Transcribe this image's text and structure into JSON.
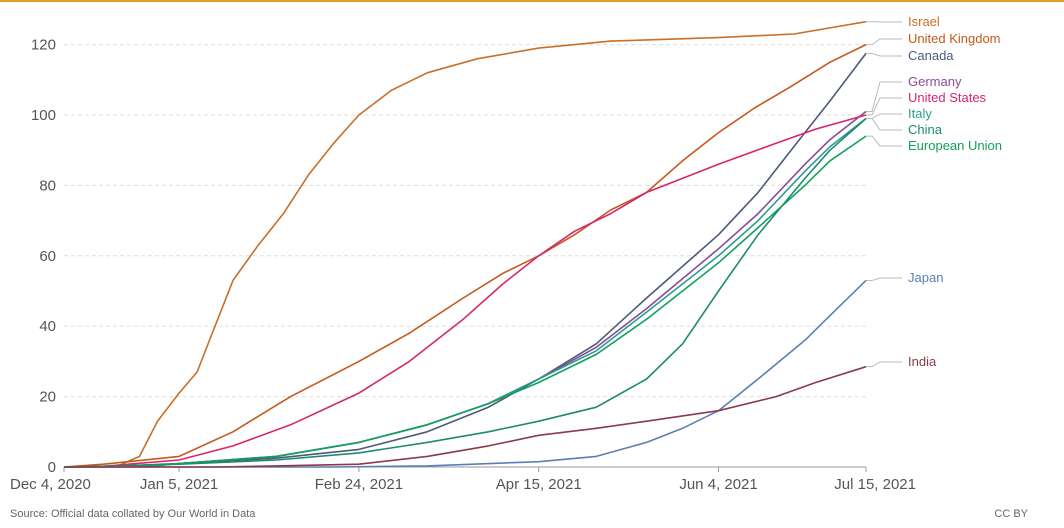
{
  "chart_data": {
    "type": "line",
    "title": "",
    "xlabel": "",
    "ylabel": "",
    "ylim": [
      0,
      125
    ],
    "yticks": [
      0,
      20,
      40,
      60,
      80,
      100,
      120
    ],
    "xlim": [
      "2020-12-04",
      "2021-07-15"
    ],
    "xticks": [
      {
        "date": "2020-12-04",
        "label": "Dec 4, 2020"
      },
      {
        "date": "2021-01-05",
        "label": "Jan 5, 2021"
      },
      {
        "date": "2021-02-24",
        "label": "Feb 24, 2021"
      },
      {
        "date": "2021-04-15",
        "label": "Apr 15, 2021"
      },
      {
        "date": "2021-06-04",
        "label": "Jun 4, 2021"
      },
      {
        "date": "2021-07-15",
        "label": "Jul 15, 2021"
      }
    ],
    "grid": true,
    "legend": "right",
    "series": [
      {
        "name": "Israel",
        "color": "#c8702a",
        "points": [
          [
            "2020-12-04",
            0
          ],
          [
            "2020-12-19",
            0.3
          ],
          [
            "2020-12-25",
            3
          ],
          [
            "2020-12-30",
            13
          ],
          [
            "2021-01-05",
            21
          ],
          [
            "2021-01-10",
            27
          ],
          [
            "2021-01-15",
            40
          ],
          [
            "2021-01-20",
            53
          ],
          [
            "2021-01-27",
            63
          ],
          [
            "2021-02-03",
            72
          ],
          [
            "2021-02-10",
            83
          ],
          [
            "2021-02-17",
            92
          ],
          [
            "2021-02-24",
            100
          ],
          [
            "2021-03-05",
            107
          ],
          [
            "2021-03-15",
            112
          ],
          [
            "2021-03-29",
            116
          ],
          [
            "2021-04-15",
            119
          ],
          [
            "2021-05-05",
            121
          ],
          [
            "2021-06-04",
            122
          ],
          [
            "2021-06-25",
            123
          ],
          [
            "2021-07-15",
            126.5
          ]
        ]
      },
      {
        "name": "United Kingdom",
        "color": "#c45a1a",
        "points": [
          [
            "2020-12-04",
            0
          ],
          [
            "2020-12-15",
            0.8
          ],
          [
            "2021-01-05",
            3
          ],
          [
            "2021-01-20",
            10
          ],
          [
            "2021-02-05",
            20
          ],
          [
            "2021-02-24",
            30
          ],
          [
            "2021-03-10",
            38
          ],
          [
            "2021-03-25",
            48
          ],
          [
            "2021-04-05",
            55
          ],
          [
            "2021-04-15",
            60
          ],
          [
            "2021-04-25",
            66
          ],
          [
            "2021-05-05",
            73
          ],
          [
            "2021-05-15",
            78
          ],
          [
            "2021-05-25",
            87
          ],
          [
            "2021-06-04",
            95
          ],
          [
            "2021-06-14",
            102
          ],
          [
            "2021-06-24",
            108
          ],
          [
            "2021-07-05",
            115
          ],
          [
            "2021-07-15",
            120
          ]
        ]
      },
      {
        "name": "Canada",
        "color": "#4c5a7a",
        "points": [
          [
            "2020-12-04",
            0
          ],
          [
            "2020-12-20",
            0.3
          ],
          [
            "2021-01-05",
            1
          ],
          [
            "2021-02-01",
            2.5
          ],
          [
            "2021-02-24",
            5
          ],
          [
            "2021-03-15",
            10
          ],
          [
            "2021-04-01",
            17
          ],
          [
            "2021-04-15",
            25
          ],
          [
            "2021-05-01",
            35
          ],
          [
            "2021-05-15",
            48
          ],
          [
            "2021-06-04",
            66
          ],
          [
            "2021-06-15",
            78
          ],
          [
            "2021-06-28",
            95
          ],
          [
            "2021-07-05",
            104
          ],
          [
            "2021-07-15",
            117.5
          ]
        ]
      },
      {
        "name": "Germany",
        "color": "#8a4a9a",
        "points": [
          [
            "2020-12-04",
            0
          ],
          [
            "2020-12-27",
            0.1
          ],
          [
            "2021-01-05",
            1
          ],
          [
            "2021-02-01",
            3
          ],
          [
            "2021-02-24",
            7
          ],
          [
            "2021-03-15",
            12
          ],
          [
            "2021-04-01",
            18
          ],
          [
            "2021-04-15",
            25
          ],
          [
            "2021-05-01",
            34
          ],
          [
            "2021-05-15",
            45
          ],
          [
            "2021-06-04",
            62
          ],
          [
            "2021-06-15",
            72
          ],
          [
            "2021-06-28",
            86
          ],
          [
            "2021-07-05",
            93
          ],
          [
            "2021-07-15",
            101
          ]
        ]
      },
      {
        "name": "United States",
        "color": "#d6266e",
        "points": [
          [
            "2020-12-04",
            0
          ],
          [
            "2020-12-14",
            0.1
          ],
          [
            "2021-01-05",
            2
          ],
          [
            "2021-01-20",
            6
          ],
          [
            "2021-02-05",
            12
          ],
          [
            "2021-02-24",
            21
          ],
          [
            "2021-03-10",
            30
          ],
          [
            "2021-03-25",
            42
          ],
          [
            "2021-04-05",
            52
          ],
          [
            "2021-04-15",
            60
          ],
          [
            "2021-04-25",
            67
          ],
          [
            "2021-05-05",
            72
          ],
          [
            "2021-05-15",
            78
          ],
          [
            "2021-06-04",
            86
          ],
          [
            "2021-06-20",
            92
          ],
          [
            "2021-07-01",
            96
          ],
          [
            "2021-07-15",
            100
          ]
        ]
      },
      {
        "name": "Italy",
        "color": "#2a9d8f",
        "points": [
          [
            "2020-12-04",
            0
          ],
          [
            "2020-12-27",
            0.1
          ],
          [
            "2021-01-05",
            1
          ],
          [
            "2021-02-01",
            3
          ],
          [
            "2021-02-24",
            7
          ],
          [
            "2021-03-15",
            12
          ],
          [
            "2021-04-01",
            18
          ],
          [
            "2021-04-15",
            25
          ],
          [
            "2021-05-01",
            33
          ],
          [
            "2021-05-15",
            44
          ],
          [
            "2021-06-04",
            60
          ],
          [
            "2021-06-15",
            70
          ],
          [
            "2021-06-28",
            84
          ],
          [
            "2021-07-05",
            91
          ],
          [
            "2021-07-15",
            99
          ]
        ]
      },
      {
        "name": "China",
        "color": "#1f8a70",
        "points": [
          [
            "2020-12-04",
            0
          ],
          [
            "2020-12-20",
            0.3
          ],
          [
            "2021-01-05",
            0.8
          ],
          [
            "2021-02-01",
            2
          ],
          [
            "2021-02-24",
            4
          ],
          [
            "2021-03-15",
            7
          ],
          [
            "2021-04-01",
            10
          ],
          [
            "2021-04-15",
            13
          ],
          [
            "2021-05-01",
            17
          ],
          [
            "2021-05-15",
            25
          ],
          [
            "2021-05-25",
            35
          ],
          [
            "2021-06-04",
            50
          ],
          [
            "2021-06-15",
            66
          ],
          [
            "2021-06-28",
            82
          ],
          [
            "2021-07-05",
            90
          ],
          [
            "2021-07-15",
            99
          ]
        ]
      },
      {
        "name": "European Union",
        "color": "#13a05c",
        "points": [
          [
            "2020-12-04",
            0
          ],
          [
            "2020-12-27",
            0.1
          ],
          [
            "2021-01-05",
            1
          ],
          [
            "2021-02-01",
            3
          ],
          [
            "2021-02-24",
            7
          ],
          [
            "2021-03-15",
            12
          ],
          [
            "2021-04-01",
            18
          ],
          [
            "2021-04-15",
            24
          ],
          [
            "2021-05-01",
            32
          ],
          [
            "2021-05-15",
            42
          ],
          [
            "2021-06-04",
            58
          ],
          [
            "2021-06-15",
            68
          ],
          [
            "2021-06-28",
            80
          ],
          [
            "2021-07-05",
            87
          ],
          [
            "2021-07-15",
            94
          ]
        ]
      },
      {
        "name": "Japan",
        "color": "#5b7fb5",
        "points": [
          [
            "2020-12-04",
            0
          ],
          [
            "2021-02-17",
            0
          ],
          [
            "2021-03-15",
            0.3
          ],
          [
            "2021-04-15",
            1.5
          ],
          [
            "2021-05-01",
            3
          ],
          [
            "2021-05-15",
            7
          ],
          [
            "2021-05-25",
            11
          ],
          [
            "2021-06-04",
            16
          ],
          [
            "2021-06-15",
            25
          ],
          [
            "2021-06-28",
            36
          ],
          [
            "2021-07-05",
            43
          ],
          [
            "2021-07-15",
            53
          ]
        ]
      },
      {
        "name": "India",
        "color": "#8b3a4a",
        "points": [
          [
            "2020-12-04",
            0
          ],
          [
            "2021-01-16",
            0
          ],
          [
            "2021-02-01",
            0.3
          ],
          [
            "2021-02-24",
            0.8
          ],
          [
            "2021-03-15",
            3
          ],
          [
            "2021-04-01",
            6
          ],
          [
            "2021-04-15",
            9
          ],
          [
            "2021-05-01",
            11
          ],
          [
            "2021-05-15",
            13
          ],
          [
            "2021-06-04",
            16
          ],
          [
            "2021-06-20",
            20
          ],
          [
            "2021-07-01",
            24
          ],
          [
            "2021-07-15",
            28.5
          ]
        ]
      }
    ]
  },
  "footer": {
    "source": "Source: Official data collated by Our World in Data",
    "license": "CC BY"
  }
}
